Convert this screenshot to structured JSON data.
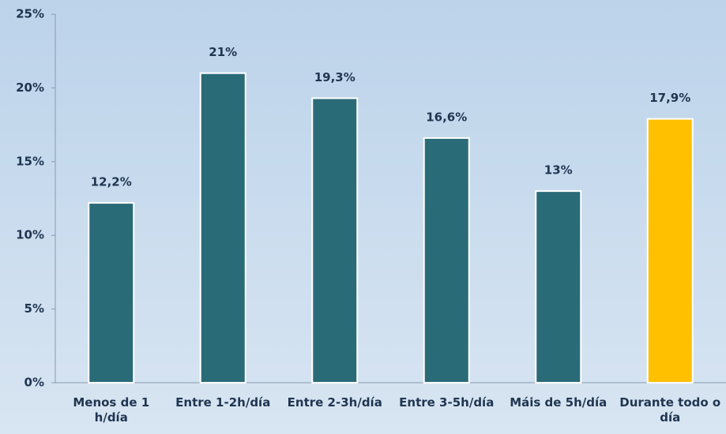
{
  "chart_data": {
    "type": "bar",
    "categories": [
      "Menos de 1 h/día",
      "Entre 1-2h/día",
      "Entre 2-3h/día",
      "Entre 3-5h/día",
      "Máis de 5h/día",
      "Durante todo o día"
    ],
    "values": [
      12.2,
      21,
      19.3,
      16.6,
      13,
      17.9
    ],
    "value_labels": [
      "12,2%",
      "21%",
      "19,3%",
      "16,6%",
      "13%",
      "17,9%"
    ],
    "colors": [
      "#2a6b78",
      "#2a6b78",
      "#2a6b78",
      "#2a6b78",
      "#2a6b78",
      "#ffc000"
    ],
    "ylim": [
      0,
      25
    ],
    "yticks": [
      {
        "value": 0,
        "label": "0%"
      },
      {
        "value": 5,
        "label": "5%"
      },
      {
        "value": 10,
        "label": "10%"
      },
      {
        "value": 15,
        "label": "15%"
      },
      {
        "value": 20,
        "label": "20%"
      },
      {
        "value": 25,
        "label": "25%"
      }
    ],
    "grid": false
  }
}
